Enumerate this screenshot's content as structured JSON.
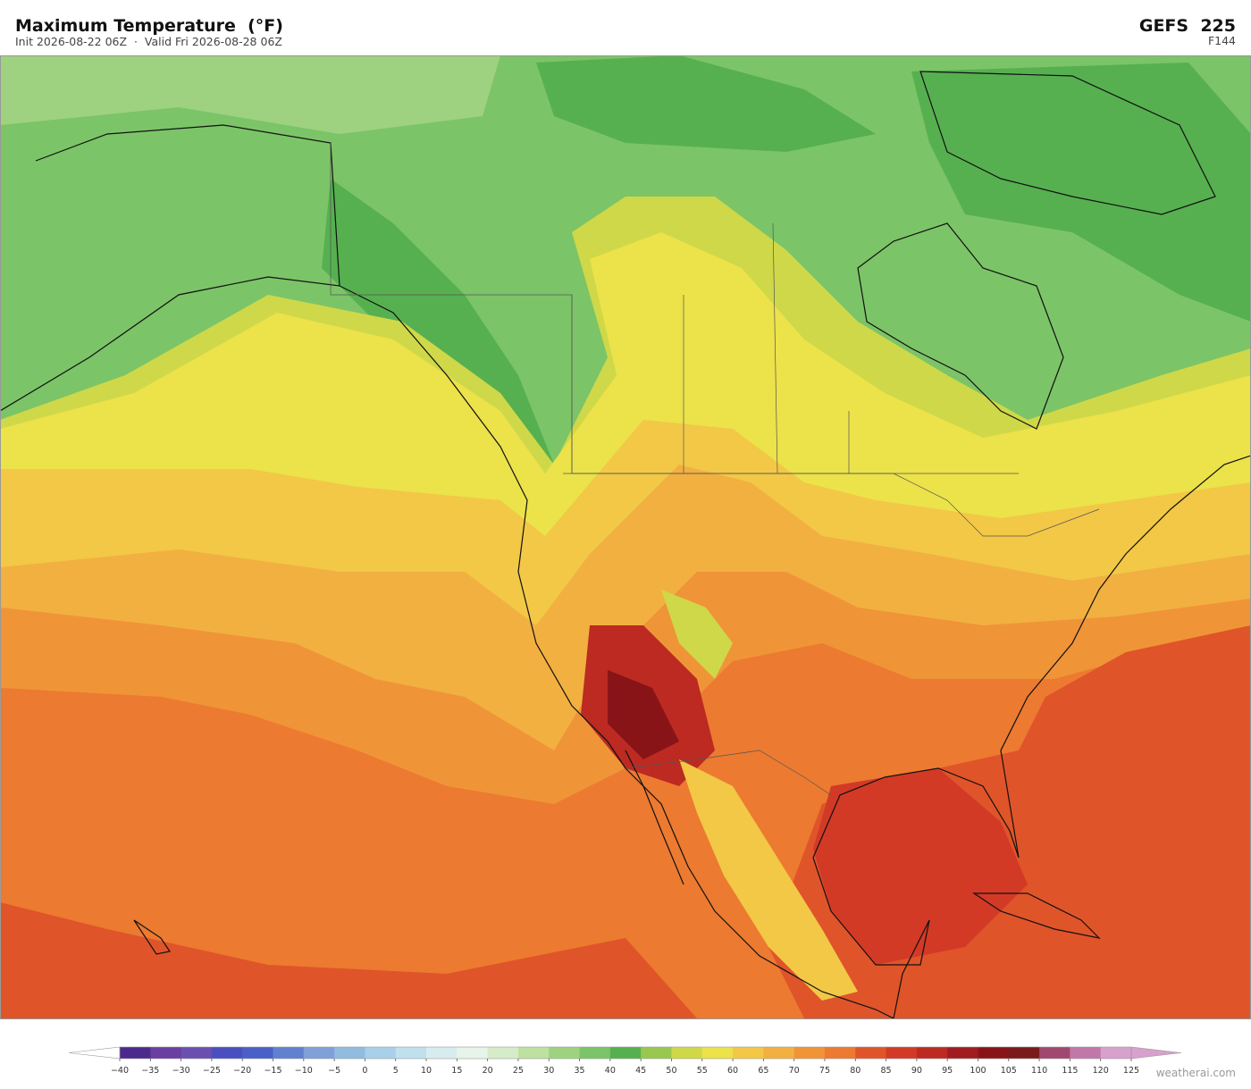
{
  "header": {
    "title": "Maximum Temperature  (°F)",
    "subtitle": "Init 2026-08-22 06Z  ·  Valid Fri 2026-08-28 06Z",
    "model": "GEFS  225",
    "forecast_hour": "F144"
  },
  "colorbar": {
    "ticks": [
      {
        "value": -40,
        "label": "−40"
      },
      {
        "value": -35,
        "label": "−35"
      },
      {
        "value": -30,
        "label": "−30"
      },
      {
        "value": -25,
        "label": "−25"
      },
      {
        "value": -20,
        "label": "−20"
      },
      {
        "value": -15,
        "label": "−15"
      },
      {
        "value": -10,
        "label": "−10"
      },
      {
        "value": -5,
        "label": "−5"
      },
      0,
      5,
      10,
      15,
      20,
      25,
      30,
      35,
      40,
      45,
      50,
      55,
      60,
      65,
      70,
      75,
      80,
      85,
      90,
      95,
      100,
      105,
      110,
      115,
      120,
      125
    ],
    "colors": [
      "#4b2a8c",
      "#6a3fa0",
      "#6a4fb0",
      "#4a4fc0",
      "#4a60c8",
      "#6080d0",
      "#80a0d8",
      "#90bce0",
      "#a8d0e8",
      "#c0e0ee",
      "#d8ecf0",
      "#e6f4ea",
      "#d6ecc8",
      "#bee0a0",
      "#9ed280",
      "#7cc468",
      "#56b050",
      "#98c850",
      "#cfd848",
      "#ece24a",
      "#f2c846",
      "#f2b040",
      "#f09438",
      "#ec7a30",
      "#e0542a",
      "#d23a26",
      "#bc2a22",
      "#a01c1e",
      "#881418",
      "#7a1a1c",
      "#a04870",
      "#c078a8",
      "#d8a0cc"
    ],
    "under_color": "#ffffff",
    "over_color": "#d8a0cc"
  },
  "watermark": "weatherai.com"
}
